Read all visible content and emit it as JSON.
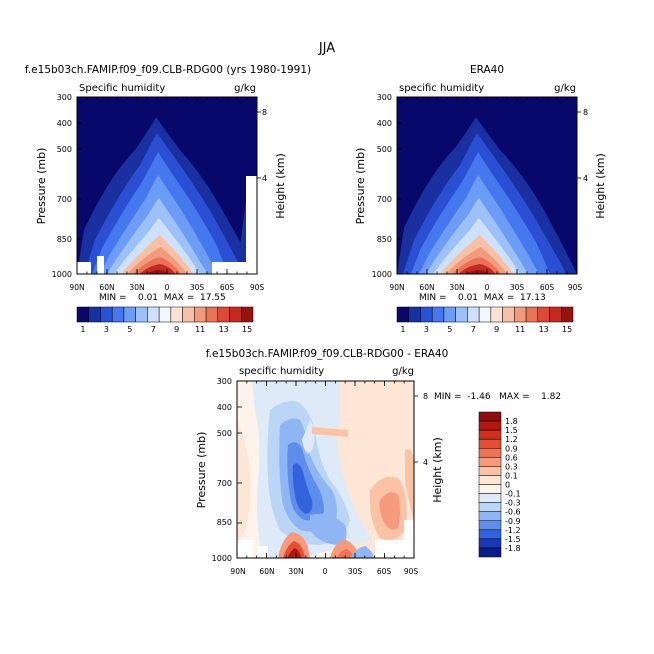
{
  "season_title": "JJA",
  "panels": [
    {
      "id": "model",
      "title": "f.e15b03ch.FAMIP.f09_f09.CLB-RDG00 (yrs 1980-1991)",
      "left_label": "Specific humidity",
      "right_label": "g/kg",
      "ylabel": "Pressure (mb)",
      "y2label": "Height (km)",
      "stats": "MIN =    0.01  MAX =  17.55"
    },
    {
      "id": "obs",
      "title": "ERA40",
      "left_label": "specific humidity",
      "right_label": "g/kg",
      "ylabel": "Pressure (mb)",
      "y2label": "Height (km)",
      "stats": "MIN =    0.01  MAX =  17.13"
    },
    {
      "id": "diff",
      "title": "f.e15b03ch.FAMIP.f09_f09.CLB-RDG00 - ERA40",
      "left_label": "specific humidity",
      "right_label": "g/kg",
      "ylabel": "Pressure (mb)",
      "y2label": "Height (km)",
      "stats": "MIN =  -1.46   MAX =    1.82"
    }
  ],
  "chart_data": [
    {
      "type": "heatmap",
      "panel": "model",
      "x_ticks": [
        "90N",
        "60N",
        "30N",
        "0",
        "30S",
        "60S",
        "90S"
      ],
      "y_ticks": [
        "300",
        "400",
        "500",
        "700",
        "850",
        "1000"
      ],
      "y2_ticks": [
        "8",
        "4"
      ],
      "zmin": 0.01,
      "zmax": 17.55,
      "peak_latitude": -5,
      "missing_data": "white patches near surface at high latitudes"
    },
    {
      "type": "heatmap",
      "panel": "obs",
      "x_ticks": [
        "90N",
        "60N",
        "30N",
        "0",
        "30S",
        "60S",
        "90S"
      ],
      "y_ticks": [
        "300",
        "400",
        "500",
        "700",
        "850",
        "1000"
      ],
      "y2_ticks": [
        "8",
        "4"
      ],
      "zmin": 0.01,
      "zmax": 17.13,
      "peak_latitude": -5
    },
    {
      "type": "heatmap",
      "panel": "diff",
      "x_ticks": [
        "90N",
        "60N",
        "30N",
        "0",
        "30S",
        "60S",
        "90S"
      ],
      "y_ticks": [
        "300",
        "400",
        "500",
        "700",
        "850",
        "1000"
      ],
      "y2_ticks": [
        "8",
        "4"
      ],
      "zmin": -1.46,
      "zmax": 1.82
    }
  ],
  "colorbar_top": {
    "labels": [
      "1",
      "3",
      "5",
      "7",
      "9",
      "11",
      "13",
      "15"
    ],
    "colors": [
      "#08086b",
      "#1730a6",
      "#2a52d6",
      "#4578ee",
      "#6c9cf5",
      "#9cc1f8",
      "#cfe1fa",
      "#f3f6fb",
      "#fde2d2",
      "#f8c1a5",
      "#f29b7b",
      "#ea7259",
      "#dc4a3a",
      "#c42a22",
      "#96140f"
    ]
  },
  "colorbar_diff": {
    "labels": [
      "1.8",
      "1.5",
      "1.2",
      "0.9",
      "0.6",
      "0.3",
      "0.1",
      "0",
      "-0.1",
      "-0.3",
      "-0.6",
      "-0.9",
      "-1.2",
      "-1.5",
      "-1.8"
    ],
    "colors": [
      "#8b0d0d",
      "#b0180f",
      "#cf2f1f",
      "#e34e35",
      "#f07356",
      "#f7997c",
      "#fbc2a6",
      "#fde6d5",
      "#fef3ea",
      "#dfeaf9",
      "#bbd5f6",
      "#8fb5f2",
      "#5d8eeb",
      "#3462dd",
      "#1838b8",
      "#0b1c8a"
    ]
  }
}
